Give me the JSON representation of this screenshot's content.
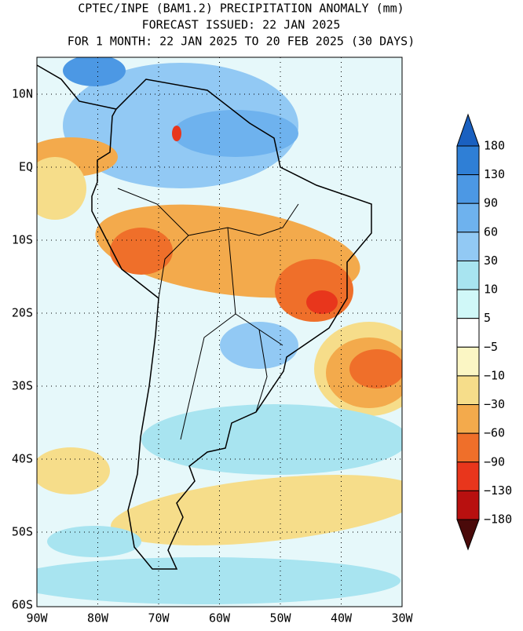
{
  "header": {
    "lines": [
      "CPTEC/INPE (BAM1.2) PRECIPITATION ANOMALY (mm)",
      "FORECAST ISSUED: 22 JAN 2025",
      "FOR 1 MONTH: 22 JAN 2025 TO 20 FEB 2025 (30 DAYS)"
    ]
  },
  "map": {
    "lat_labels": [
      "10N",
      "EQ",
      "10S",
      "20S",
      "30S",
      "40S",
      "50S",
      "60S"
    ],
    "lon_labels": [
      "90W",
      "80W",
      "70W",
      "60W",
      "50W",
      "40W",
      "30W"
    ]
  },
  "legend": {
    "levels": [
      "180",
      "130",
      "90",
      "60",
      "30",
      "10",
      "5",
      "−5",
      "−10",
      "−30",
      "−60",
      "−90",
      "−130",
      "−180"
    ],
    "colors": [
      "#2f7fd6",
      "#4c98e4",
      "#6eb2ee",
      "#92c9f4",
      "#a8e4f0",
      "#d0f8f8",
      "#ffffff",
      "#fbf6c4",
      "#f6dd8a",
      "#f3aa4c",
      "#ef6f2a",
      "#e8361c",
      "#b8100f"
    ],
    "over_color": "#1a60c0",
    "under_color": "#4a0a0a"
  }
}
